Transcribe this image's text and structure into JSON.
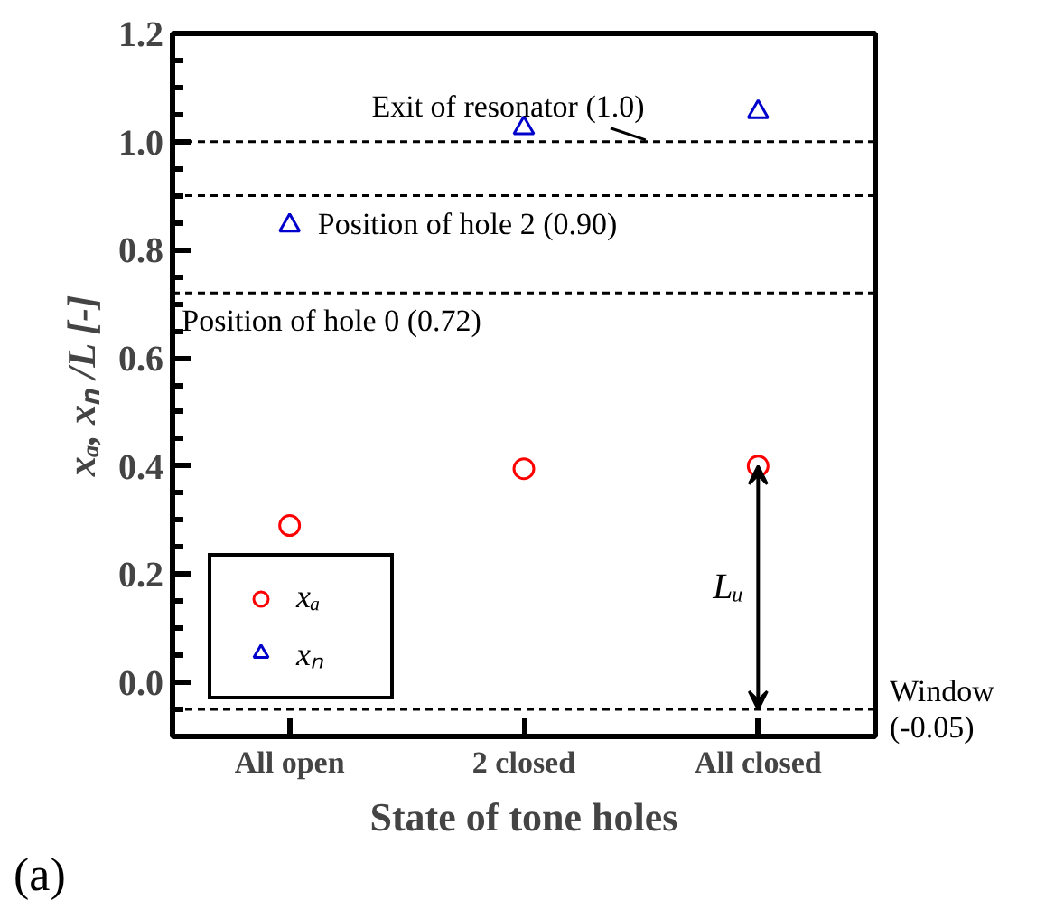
{
  "chart_data": {
    "type": "scatter",
    "xlabel": "State of tone holes",
    "ylabel": "xₐ, xₙ /L [-]",
    "categories": [
      "All open",
      "2 closed",
      "All closed"
    ],
    "series": [
      {
        "name": "xₐ",
        "color": "#ff0000",
        "marker": "circle",
        "values": [
          0.29,
          0.395,
          0.4
        ]
      },
      {
        "name": "xₙ",
        "color": "#0000cc",
        "marker": "triangle",
        "values": [
          0.845,
          1.025,
          1.055
        ]
      }
    ],
    "ylim": [
      -0.1,
      1.2
    ],
    "yticks": [
      {
        "value": 0,
        "label": "0.0"
      },
      0.2,
      0.4,
      0.6,
      0.8,
      {
        "value": 1,
        "label": "1.0"
      },
      1.2
    ],
    "ref_lines": [
      {
        "axis": "y",
        "value": 1.0,
        "label": "Exit of resonator (1.0)",
        "line_style": "dashed",
        "color": "#000000"
      },
      {
        "axis": "y",
        "value": 0.9,
        "label": "Position of hole 2 (0.90)",
        "line_style": "dashed",
        "color": "#000000"
      },
      {
        "axis": "y",
        "value": 0.72,
        "label": "Position of hole 0 (0.72)",
        "line_style": "dashed",
        "color": "#000000"
      },
      {
        "axis": "y",
        "value": -0.05,
        "label": "Window\n(-0.05)",
        "line_style": "dashed",
        "color": "#000000"
      }
    ],
    "annotations": [
      "Lᵤ",
      "(a)"
    ],
    "grid": false,
    "legend": "bottom left"
  }
}
